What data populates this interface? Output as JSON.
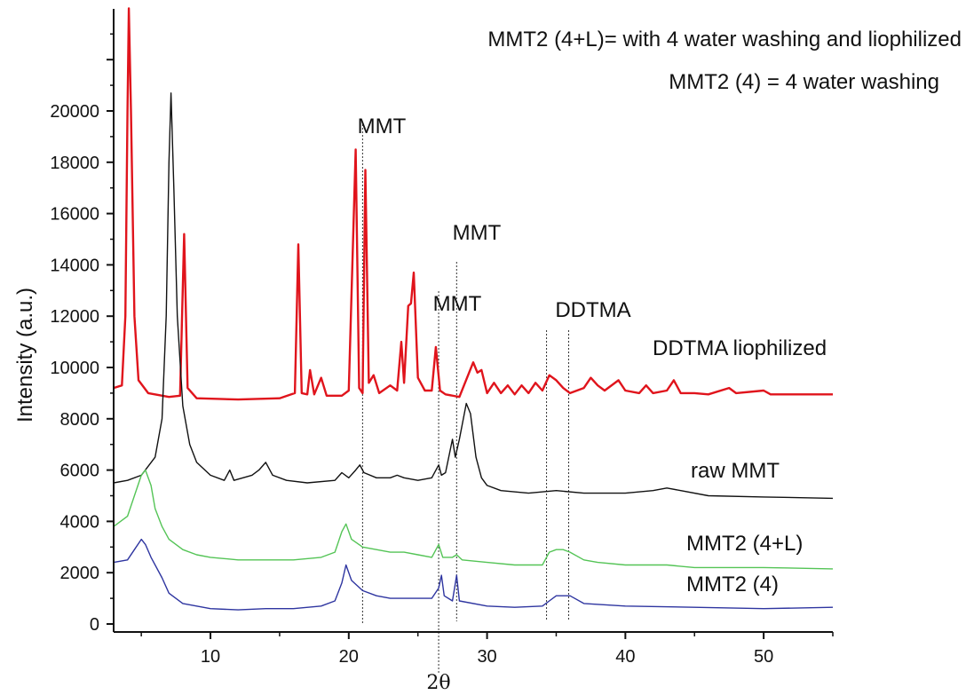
{
  "chart_data": {
    "type": "line",
    "xlabel": "2θ",
    "ylabel": "Intensity (a.u.)",
    "xlim": [
      3,
      55
    ],
    "ylim": [
      -400,
      24000
    ],
    "x_ticks": [
      10,
      20,
      30,
      40,
      50
    ],
    "y_ticks": [
      0,
      2000,
      4000,
      6000,
      8000,
      10000,
      12000,
      14000,
      16000,
      18000,
      20000
    ],
    "notes": [
      "MMT2 (4+L)= with 4 water washing and liophilized",
      "MMT2 (4) = 4 water washing"
    ],
    "annotations": [
      {
        "text": "MMT",
        "x": 21.0
      },
      {
        "text": "MMT",
        "x": 27.8
      },
      {
        "text": "MMT",
        "x": 26.5
      },
      {
        "text": "DDTMA",
        "x": 35.0
      }
    ],
    "reference_lines_x": [
      21.0,
      26.5,
      27.8,
      34.3,
      35.9
    ],
    "series": [
      {
        "name": "DDTMA liophilized",
        "color": "#e0141c",
        "points": [
          [
            3.0,
            9200
          ],
          [
            3.6,
            9300
          ],
          [
            3.85,
            12000
          ],
          [
            4.0,
            20000
          ],
          [
            4.1,
            24000
          ],
          [
            4.25,
            20000
          ],
          [
            4.5,
            12000
          ],
          [
            4.8,
            9500
          ],
          [
            5.5,
            9000
          ],
          [
            7.0,
            8850
          ],
          [
            7.8,
            8900
          ],
          [
            8.1,
            15200
          ],
          [
            8.35,
            9200
          ],
          [
            9.0,
            8800
          ],
          [
            12.0,
            8750
          ],
          [
            15.0,
            8800
          ],
          [
            16.1,
            9000
          ],
          [
            16.35,
            14800
          ],
          [
            16.6,
            9000
          ],
          [
            17.0,
            8950
          ],
          [
            17.2,
            9900
          ],
          [
            17.5,
            8950
          ],
          [
            18.0,
            9600
          ],
          [
            18.4,
            8900
          ],
          [
            19.5,
            8900
          ],
          [
            20.0,
            9100
          ],
          [
            20.5,
            18500
          ],
          [
            20.75,
            9200
          ],
          [
            21.0,
            9000
          ],
          [
            21.2,
            17700
          ],
          [
            21.45,
            9400
          ],
          [
            21.8,
            9700
          ],
          [
            22.2,
            9000
          ],
          [
            23.0,
            9300
          ],
          [
            23.5,
            9100
          ],
          [
            23.8,
            11000
          ],
          [
            24.0,
            9400
          ],
          [
            24.3,
            12400
          ],
          [
            24.5,
            12500
          ],
          [
            24.7,
            13700
          ],
          [
            25.0,
            9600
          ],
          [
            25.5,
            9100
          ],
          [
            26.0,
            9100
          ],
          [
            26.3,
            10800
          ],
          [
            26.6,
            9100
          ],
          [
            27.0,
            8950
          ],
          [
            28.0,
            8850
          ],
          [
            29.0,
            10200
          ],
          [
            29.3,
            9800
          ],
          [
            29.6,
            9900
          ],
          [
            30.0,
            9000
          ],
          [
            30.5,
            9400
          ],
          [
            31.0,
            9000
          ],
          [
            31.5,
            9300
          ],
          [
            32.0,
            8950
          ],
          [
            32.5,
            9300
          ],
          [
            33.0,
            9000
          ],
          [
            33.5,
            9400
          ],
          [
            34.0,
            9100
          ],
          [
            34.5,
            9700
          ],
          [
            35.0,
            9500
          ],
          [
            35.5,
            9200
          ],
          [
            36.0,
            9000
          ],
          [
            37.0,
            9200
          ],
          [
            37.5,
            9600
          ],
          [
            38.0,
            9300
          ],
          [
            38.5,
            9100
          ],
          [
            39.5,
            9500
          ],
          [
            40.0,
            9100
          ],
          [
            41.0,
            9000
          ],
          [
            41.5,
            9300
          ],
          [
            42.0,
            9000
          ],
          [
            43.0,
            9100
          ],
          [
            43.5,
            9500
          ],
          [
            44.0,
            9000
          ],
          [
            45.0,
            9000
          ],
          [
            46.0,
            8950
          ],
          [
            47.5,
            9200
          ],
          [
            48.0,
            9000
          ],
          [
            50.0,
            9100
          ],
          [
            50.5,
            8950
          ],
          [
            52.0,
            8950
          ],
          [
            55.0,
            8950
          ]
        ]
      },
      {
        "name": "raw MMT",
        "color": "#111111",
        "points": [
          [
            3.0,
            5500
          ],
          [
            4.0,
            5600
          ],
          [
            5.0,
            5800
          ],
          [
            6.0,
            6500
          ],
          [
            6.5,
            8000
          ],
          [
            6.8,
            12000
          ],
          [
            7.0,
            18000
          ],
          [
            7.15,
            20700
          ],
          [
            7.35,
            17000
          ],
          [
            7.6,
            12000
          ],
          [
            8.0,
            8500
          ],
          [
            8.5,
            7000
          ],
          [
            9.0,
            6300
          ],
          [
            10.0,
            5800
          ],
          [
            11.0,
            5600
          ],
          [
            11.4,
            6000
          ],
          [
            11.7,
            5600
          ],
          [
            13.0,
            5800
          ],
          [
            13.5,
            6000
          ],
          [
            14.0,
            6300
          ],
          [
            14.5,
            5800
          ],
          [
            15.5,
            5600
          ],
          [
            17.0,
            5500
          ],
          [
            19.0,
            5600
          ],
          [
            19.5,
            5900
          ],
          [
            20.0,
            5700
          ],
          [
            20.5,
            6000
          ],
          [
            20.8,
            6200
          ],
          [
            21.1,
            5900
          ],
          [
            22.0,
            5700
          ],
          [
            23.0,
            5700
          ],
          [
            23.5,
            5800
          ],
          [
            24.0,
            5700
          ],
          [
            25.0,
            5600
          ],
          [
            26.0,
            5700
          ],
          [
            26.5,
            6200
          ],
          [
            26.7,
            5800
          ],
          [
            27.0,
            5900
          ],
          [
            27.5,
            7200
          ],
          [
            27.7,
            6500
          ],
          [
            28.0,
            7200
          ],
          [
            28.5,
            8600
          ],
          [
            28.8,
            8200
          ],
          [
            29.2,
            6500
          ],
          [
            29.6,
            5700
          ],
          [
            30.0,
            5400
          ],
          [
            31.0,
            5200
          ],
          [
            33.0,
            5100
          ],
          [
            35.0,
            5200
          ],
          [
            37.0,
            5100
          ],
          [
            40.0,
            5100
          ],
          [
            42.0,
            5200
          ],
          [
            43.0,
            5300
          ],
          [
            44.0,
            5200
          ],
          [
            46.0,
            5000
          ],
          [
            50.0,
            4950
          ],
          [
            55.0,
            4900
          ]
        ]
      },
      {
        "name": "MMT2 (4+L)",
        "color": "#54c456",
        "points": [
          [
            3.0,
            3800
          ],
          [
            4.0,
            4200
          ],
          [
            4.5,
            5000
          ],
          [
            5.0,
            5800
          ],
          [
            5.3,
            6000
          ],
          [
            5.7,
            5400
          ],
          [
            6.0,
            4500
          ],
          [
            6.5,
            3800
          ],
          [
            7.0,
            3300
          ],
          [
            8.0,
            2900
          ],
          [
            9.0,
            2700
          ],
          [
            10.0,
            2600
          ],
          [
            12.0,
            2500
          ],
          [
            14.0,
            2500
          ],
          [
            16.0,
            2500
          ],
          [
            18.0,
            2600
          ],
          [
            19.0,
            2800
          ],
          [
            19.5,
            3600
          ],
          [
            19.8,
            3900
          ],
          [
            20.2,
            3300
          ],
          [
            21.0,
            3000
          ],
          [
            22.0,
            2900
          ],
          [
            23.0,
            2800
          ],
          [
            24.0,
            2800
          ],
          [
            25.0,
            2700
          ],
          [
            26.0,
            2600
          ],
          [
            26.5,
            3100
          ],
          [
            26.8,
            2600
          ],
          [
            27.5,
            2600
          ],
          [
            27.8,
            2700
          ],
          [
            28.2,
            2500
          ],
          [
            30.0,
            2400
          ],
          [
            32.0,
            2300
          ],
          [
            34.0,
            2300
          ],
          [
            34.5,
            2800
          ],
          [
            35.0,
            2900
          ],
          [
            35.5,
            2900
          ],
          [
            36.0,
            2800
          ],
          [
            37.0,
            2500
          ],
          [
            38.0,
            2400
          ],
          [
            40.0,
            2300
          ],
          [
            43.0,
            2300
          ],
          [
            45.0,
            2200
          ],
          [
            50.0,
            2200
          ],
          [
            55.0,
            2150
          ]
        ]
      },
      {
        "name": "MMT2 (4)",
        "color": "#2e35a0",
        "points": [
          [
            3.0,
            2400
          ],
          [
            4.0,
            2500
          ],
          [
            4.5,
            2900
          ],
          [
            5.0,
            3300
          ],
          [
            5.3,
            3100
          ],
          [
            5.7,
            2600
          ],
          [
            6.5,
            1800
          ],
          [
            7.0,
            1200
          ],
          [
            8.0,
            800
          ],
          [
            10.0,
            600
          ],
          [
            12.0,
            550
          ],
          [
            14.0,
            600
          ],
          [
            16.0,
            600
          ],
          [
            18.0,
            700
          ],
          [
            19.0,
            900
          ],
          [
            19.5,
            1600
          ],
          [
            19.8,
            2300
          ],
          [
            20.2,
            1700
          ],
          [
            21.0,
            1300
          ],
          [
            22.0,
            1100
          ],
          [
            23.0,
            1000
          ],
          [
            24.0,
            1000
          ],
          [
            25.0,
            1000
          ],
          [
            26.0,
            1000
          ],
          [
            26.5,
            1400
          ],
          [
            26.7,
            1900
          ],
          [
            26.9,
            1100
          ],
          [
            27.5,
            900
          ],
          [
            27.8,
            1900
          ],
          [
            28.0,
            900
          ],
          [
            30.0,
            700
          ],
          [
            32.0,
            650
          ],
          [
            34.0,
            700
          ],
          [
            34.5,
            900
          ],
          [
            35.0,
            1100
          ],
          [
            36.0,
            1100
          ],
          [
            37.0,
            800
          ],
          [
            40.0,
            700
          ],
          [
            45.0,
            650
          ],
          [
            50.0,
            600
          ],
          [
            55.0,
            650
          ]
        ]
      }
    ]
  }
}
